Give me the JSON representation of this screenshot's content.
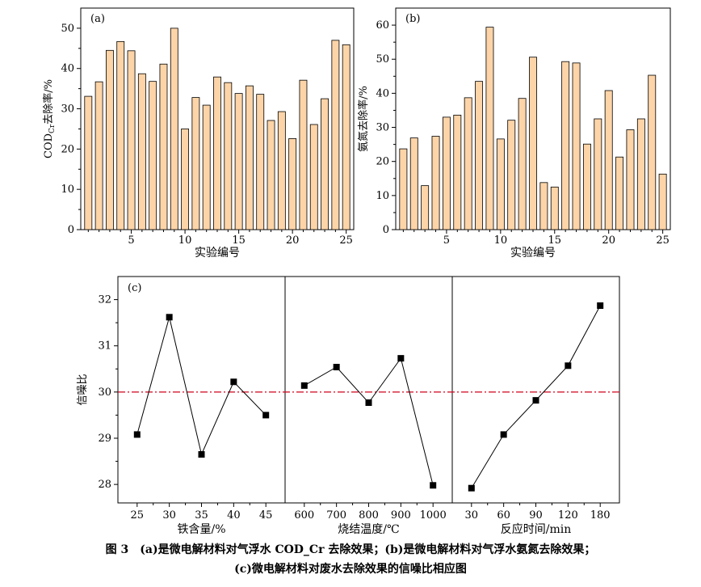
{
  "chart_data": [
    {
      "type": "bar",
      "panel_label": "(a)",
      "ylabel": "COD_Cr去除率/%",
      "xlabel": "实验编号",
      "x": [
        1,
        2,
        3,
        4,
        5,
        6,
        7,
        8,
        9,
        10,
        11,
        12,
        13,
        14,
        15,
        16,
        17,
        18,
        19,
        20,
        21,
        22,
        23,
        24,
        25
      ],
      "values": [
        33.1,
        36.7,
        44.5,
        46.7,
        44.4,
        38.7,
        36.8,
        41.1,
        50.0,
        25.0,
        32.8,
        30.9,
        37.9,
        36.5,
        33.8,
        35.7,
        33.6,
        27.1,
        29.3,
        22.6,
        37.1,
        26.1,
        32.5,
        47.0,
        45.9
      ],
      "xticks": [
        "5",
        "10",
        "15",
        "20",
        "25"
      ],
      "yticks": [
        "0",
        "10",
        "20",
        "30",
        "40",
        "50"
      ],
      "ylim": [
        0,
        55
      ],
      "bar_color": "#FCD4A8"
    },
    {
      "type": "bar",
      "panel_label": "(b)",
      "ylabel": "氨氮去除率/%",
      "xlabel": "实验编号",
      "x": [
        1,
        2,
        3,
        4,
        5,
        6,
        7,
        8,
        9,
        10,
        11,
        12,
        13,
        14,
        15,
        16,
        17,
        18,
        19,
        20,
        21,
        22,
        23,
        24,
        25
      ],
      "values": [
        23.7,
        26.9,
        12.9,
        27.4,
        33.0,
        33.6,
        38.7,
        43.5,
        59.4,
        26.6,
        32.1,
        38.5,
        50.6,
        13.8,
        12.5,
        49.3,
        48.9,
        25.1,
        32.5,
        40.8,
        21.3,
        29.3,
        32.5,
        45.3,
        16.3
      ],
      "xticks": [
        "5",
        "10",
        "15",
        "20",
        "25"
      ],
      "yticks": [
        "0",
        "10",
        "20",
        "30",
        "40",
        "50",
        "60"
      ],
      "ylim": [
        0,
        65
      ],
      "bar_color": "#FCD4A8"
    },
    {
      "type": "line",
      "panel_label": "(c)",
      "ylabel": "信噪比",
      "ylim": [
        27.6,
        32.5
      ],
      "yticks": [
        "28",
        "29",
        "30",
        "31",
        "32"
      ],
      "reference_line": 30.0,
      "reference_color": "#D0021B",
      "series": [
        {
          "xlabel": "铁含量/%",
          "x": [
            "25",
            "30",
            "35",
            "40",
            "45"
          ],
          "values": [
            29.08,
            31.62,
            28.65,
            30.22,
            29.5
          ]
        },
        {
          "xlabel": "烧结温度/℃",
          "x": [
            "600",
            "700",
            "800",
            "900",
            "1000"
          ],
          "values": [
            30.14,
            30.54,
            29.77,
            30.73,
            27.98
          ]
        },
        {
          "xlabel": "反应时间/min",
          "x": [
            "30",
            "60",
            "90",
            "120",
            "180"
          ],
          "values": [
            27.92,
            29.08,
            29.82,
            30.57,
            31.87
          ]
        }
      ]
    }
  ],
  "caption": {
    "line1": "图 3　(a)是微电解材料对气浮水 COD_Cr 去除效果；(b)是微电解材料对气浮水氨氮去除效果；",
    "line2": "(c)微电解材料对废水去除效果的信噪比相应图"
  }
}
